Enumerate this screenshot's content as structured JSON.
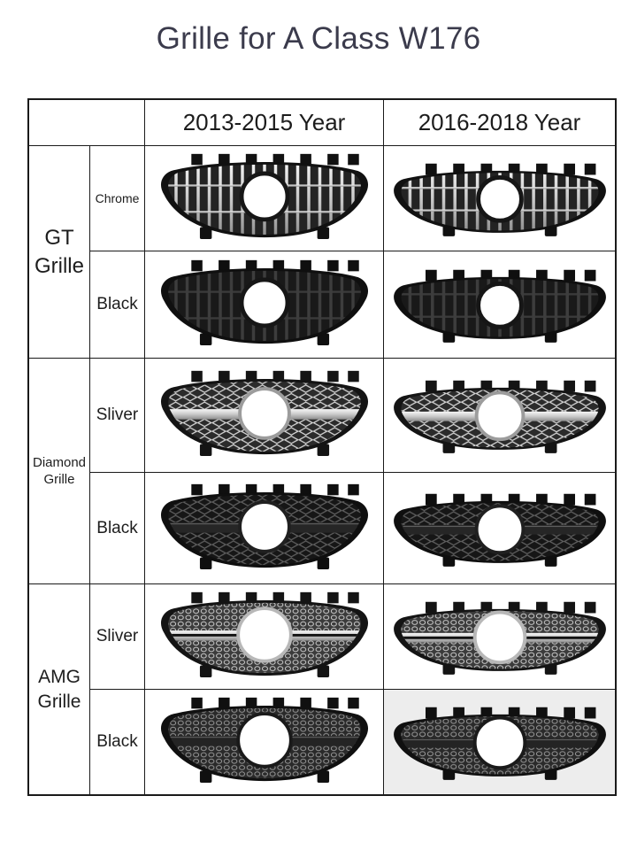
{
  "title": "Grille for A Class W176",
  "colors": {
    "title": "#3b3b4c",
    "text": "#1d1d1d",
    "border": "#1a1a1a",
    "page_bg": "#ffffff"
  },
  "table": {
    "year_headers": [
      "2013-2015 Year",
      "2016-2018 Year"
    ],
    "groups": [
      {
        "label": "GT Grille",
        "type": "gt",
        "rows": [
          {
            "finish_label": "Chrome",
            "finish": "chrome"
          },
          {
            "finish_label": "Black",
            "finish": "black"
          }
        ]
      },
      {
        "label": "Diamond Grille",
        "type": "diamond",
        "rows": [
          {
            "finish_label": "Sliver",
            "finish": "silver"
          },
          {
            "finish_label": "Black",
            "finish": "black"
          }
        ]
      },
      {
        "label": "AMG Grille",
        "type": "amg",
        "rows": [
          {
            "finish_label": "Sliver",
            "finish": "silver"
          },
          {
            "finish_label": "Black",
            "finish": "black"
          }
        ]
      }
    ]
  },
  "grille_palettes": {
    "gt_chrome": {
      "frame": "#111111",
      "interior": "#232323",
      "bar": "chrome",
      "ring": "#161616"
    },
    "gt_black": {
      "frame": "#0f0f0f",
      "interior": "#191919",
      "bar": "#3d3d3d",
      "ring": "#161616"
    },
    "diamond_silver": {
      "frame": "#141414",
      "interior": "#2b2b2b",
      "mesh": "#d6d6d6",
      "blade": "chrome",
      "ring": "#9c9c9c"
    },
    "diamond_black": {
      "frame": "#0f0f0f",
      "interior": "#161616",
      "mesh": "#5f5f5f",
      "blade": "#262626",
      "ring": "#202020"
    },
    "amg_silver": {
      "frame": "#141414",
      "interior": "#3b3b3b",
      "mesh": "#d2d2d2",
      "blade": "chrome",
      "ring": "#b8b8b8"
    },
    "amg_black": {
      "frame": "#101010",
      "interior": "#2a2a2a",
      "mesh": "#9a9a9a",
      "blade": "#242424",
      "ring": "#1a1a1a"
    }
  },
  "photo_bg_overrides": {
    "amg_black_y16": "#ededed"
  }
}
